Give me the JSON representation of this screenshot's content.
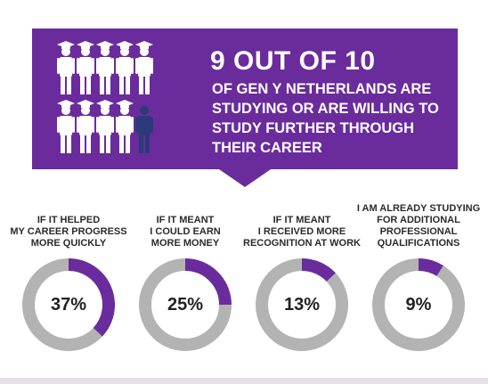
{
  "headline": "9 OUT OF 10",
  "subtext": "OF GEN Y NETHERLANDS ARE\nSTUDYING OR ARE WILLING TO\nSTUDY FURTHER THROUGH\nTHEIR CAREER",
  "colors": {
    "purple": "#6a2c9c",
    "gray": "#b3b3b3",
    "navy": "#2b3a78",
    "white": "#ffffff"
  },
  "icon_grid": {
    "total": 10,
    "highlighted": 9,
    "icon": "graduate-icon",
    "outlier_icon": "person-icon"
  },
  "chart_data": {
    "type": "pie",
    "categories": [
      "IF IT HELPED\nMY CAREER PROGRESS\nMORE QUICKLY",
      "IF IT MEANT\nI COULD EARN\nMORE MONEY",
      "IF IT MEANT\nI RECEIVED MORE\nRECOGNITION AT WORK",
      "I AM ALREADY STUDYING\nFOR ADDITIONAL\nPROFESSIONAL\nQUALIFICATIONS"
    ],
    "values": [
      37,
      25,
      13,
      9
    ],
    "value_labels": [
      "37%",
      "25%",
      "13%",
      "9%"
    ],
    "unit": "%"
  }
}
